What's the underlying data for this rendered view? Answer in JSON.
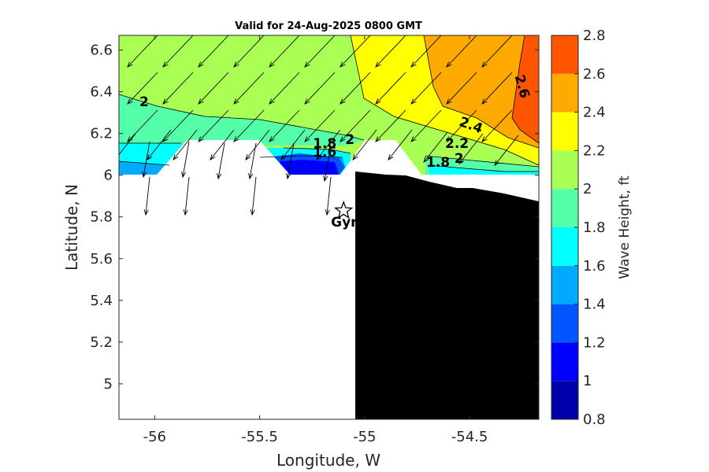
{
  "chart_data": {
    "type": "heatmap",
    "title": "Valid for 24-Aug-2025 0800 GMT",
    "xlabel": "Longitude, W",
    "ylabel": "Latitude, N",
    "xlim": [
      -56.17,
      -54.17
    ],
    "ylim": [
      4.83,
      6.67
    ],
    "xticks": [
      -56,
      -55.5,
      -55,
      -54.5
    ],
    "xtick_labels": [
      "-56",
      "-55.5",
      "-55",
      "-54.5"
    ],
    "yticks": [
      5,
      5.2,
      5.4,
      5.6,
      5.8,
      6,
      6.2,
      6.4,
      6.6
    ],
    "ytick_labels": [
      "5",
      "5.2",
      "5.4",
      "5.6",
      "5.8",
      "6",
      "6.2",
      "6.4",
      "6.6"
    ],
    "colorbar": {
      "label": "Wave Height, ft",
      "levels": [
        0.8,
        1.0,
        1.2,
        1.4,
        1.6,
        1.8,
        2.0,
        2.2,
        2.4,
        2.6,
        2.8
      ],
      "tick_labels": [
        "0.8",
        "1",
        "1.2",
        "1.4",
        "1.6",
        "1.8",
        "2",
        "2.2",
        "2.4",
        "2.6",
        "2.8"
      ],
      "colors": [
        "#0000aa",
        "#0000ff",
        "#0055ff",
        "#00aaff",
        "#00ffff",
        "#55ffaa",
        "#aaff55",
        "#ffff00",
        "#ffaa00",
        "#ff5500"
      ]
    },
    "contour_labels": [
      {
        "text": "2",
        "lon": -56.05,
        "lat": 6.33
      },
      {
        "text": "1.8",
        "lon": -55.19,
        "lat": 6.13
      },
      {
        "text": "2",
        "lon": -55.07,
        "lat": 6.15
      },
      {
        "text": "1.6",
        "lon": -55.19,
        "lat": 6.09
      },
      {
        "text": "2.4",
        "lon": -54.5,
        "lat": 6.22
      },
      {
        "text": "2.2",
        "lon": -54.56,
        "lat": 6.13
      },
      {
        "text": "1.8",
        "lon": -54.65,
        "lat": 6.04
      },
      {
        "text": "2",
        "lon": -54.55,
        "lat": 6.06
      },
      {
        "text": "2.6",
        "lon": -54.27,
        "lat": 6.42
      }
    ],
    "site_marker": {
      "name": "Gyr",
      "lon": -55.1,
      "lat": 5.83
    },
    "wave_direction": "from north-northeast (arrows pointing south-southwest)"
  }
}
